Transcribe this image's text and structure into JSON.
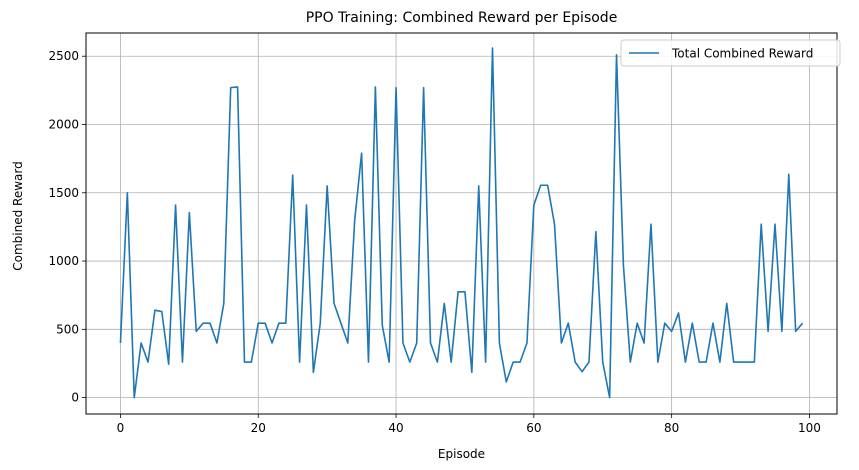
{
  "chart_data": {
    "type": "line",
    "title": "PPO Training: Combined Reward per Episode",
    "xlabel": "Episode",
    "ylabel": "Combined Reward",
    "xlim": [
      -5,
      104
    ],
    "ylim": [
      -120,
      2670
    ],
    "xticks": [
      0,
      20,
      40,
      60,
      80,
      100
    ],
    "yticks": [
      0,
      500,
      1000,
      1500,
      2000,
      2500
    ],
    "grid": true,
    "legend_position": "top-right",
    "line_color": "#1f77b4",
    "series": [
      {
        "name": "Total Combined Reward",
        "x": [
          0,
          1,
          2,
          3,
          4,
          5,
          6,
          7,
          8,
          9,
          10,
          11,
          12,
          13,
          14,
          15,
          16,
          17,
          18,
          19,
          20,
          21,
          22,
          23,
          24,
          25,
          26,
          27,
          28,
          29,
          30,
          31,
          32,
          33,
          34,
          35,
          36,
          37,
          38,
          39,
          40,
          41,
          42,
          43,
          44,
          45,
          46,
          47,
          48,
          49,
          50,
          51,
          52,
          53,
          54,
          55,
          56,
          57,
          58,
          59,
          60,
          61,
          62,
          63,
          64,
          65,
          66,
          67,
          68,
          69,
          70,
          71,
          72,
          73,
          74,
          75,
          76,
          77,
          78,
          79,
          80,
          81,
          82,
          83,
          84,
          85,
          86,
          87,
          88,
          89,
          90,
          91,
          92,
          93,
          94,
          95,
          96,
          97,
          98,
          99
        ],
        "y": [
          400,
          1500,
          0,
          400,
          260,
          640,
          630,
          245,
          1410,
          260,
          1355,
          485,
          545,
          545,
          400,
          690,
          2270,
          2275,
          260,
          260,
          545,
          545,
          400,
          545,
          545,
          1630,
          260,
          1410,
          185,
          545,
          1550,
          690,
          545,
          400,
          1300,
          1790,
          260,
          2275,
          530,
          260,
          2270,
          400,
          260,
          400,
          2270,
          400,
          260,
          690,
          260,
          775,
          775,
          185,
          1550,
          260,
          2560,
          400,
          115,
          260,
          260,
          400,
          1410,
          1555,
          1555,
          1270,
          400,
          545,
          260,
          190,
          260,
          1215,
          260,
          0,
          2510,
          970,
          260,
          545,
          400,
          1270,
          260,
          545,
          485,
          620,
          260,
          545,
          260,
          260,
          545,
          260,
          690,
          260,
          260,
          260,
          260,
          1270,
          485,
          1270,
          485,
          1635,
          485,
          545
        ]
      }
    ]
  }
}
